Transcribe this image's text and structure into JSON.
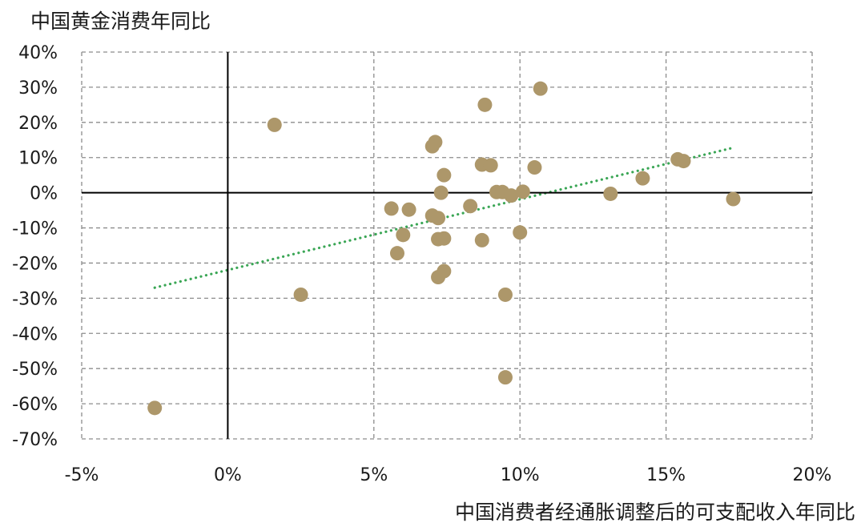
{
  "chart_data": {
    "type": "scatter",
    "title": "",
    "ylabel": "中国黄金消费年同比",
    "xlabel": "中国消费者经通胀调整后的可支配收入年同比",
    "xlim": [
      -5,
      20
    ],
    "ylim": [
      -70,
      40
    ],
    "x_ticks": [
      -5,
      0,
      5,
      10,
      15,
      20
    ],
    "y_ticks": [
      40,
      30,
      20,
      10,
      0,
      -10,
      -20,
      -30,
      -40,
      -50,
      -60,
      -70
    ],
    "x_tick_labels": [
      "-5%",
      "0%",
      "5%",
      "10%",
      "15%",
      "20%"
    ],
    "y_tick_labels": [
      "40%",
      "30%",
      "20%",
      "10%",
      "0%",
      "-10%",
      "-20%",
      "-30%",
      "-40%",
      "-50%",
      "-60%",
      "-70%"
    ],
    "grid": true,
    "grid_style": "dashed",
    "legend": "none",
    "colors": {
      "points": "#ad976a",
      "trendline": "#3aa655",
      "grid": "#8c8c8c",
      "axis": "#000000"
    },
    "series": [
      {
        "points": [
          {
            "x": -2.5,
            "y": -61.2
          },
          {
            "x": 1.6,
            "y": 19.3
          },
          {
            "x": 2.5,
            "y": -29.0
          },
          {
            "x": 5.6,
            "y": -4.5
          },
          {
            "x": 5.8,
            "y": -17.2
          },
          {
            "x": 6.0,
            "y": -12.0
          },
          {
            "x": 6.2,
            "y": -4.8
          },
          {
            "x": 7.0,
            "y": 13.2
          },
          {
            "x": 7.0,
            "y": -6.5
          },
          {
            "x": 7.1,
            "y": 14.4
          },
          {
            "x": 7.2,
            "y": -7.2
          },
          {
            "x": 7.2,
            "y": -13.2
          },
          {
            "x": 7.2,
            "y": -24.0
          },
          {
            "x": 7.3,
            "y": 0.0
          },
          {
            "x": 7.4,
            "y": 5.0
          },
          {
            "x": 7.4,
            "y": -13.0
          },
          {
            "x": 7.4,
            "y": -22.3
          },
          {
            "x": 8.3,
            "y": -3.8
          },
          {
            "x": 8.7,
            "y": 8.0
          },
          {
            "x": 8.7,
            "y": -13.5
          },
          {
            "x": 8.8,
            "y": 25.0
          },
          {
            "x": 9.0,
            "y": 7.8
          },
          {
            "x": 9.2,
            "y": 0.2
          },
          {
            "x": 9.4,
            "y": 0.2
          },
          {
            "x": 9.5,
            "y": -29.0
          },
          {
            "x": 9.5,
            "y": -52.5
          },
          {
            "x": 9.7,
            "y": -0.8
          },
          {
            "x": 10.0,
            "y": -11.3
          },
          {
            "x": 10.1,
            "y": 0.3
          },
          {
            "x": 10.5,
            "y": 7.2
          },
          {
            "x": 10.7,
            "y": 29.6
          },
          {
            "x": 13.1,
            "y": -0.3
          },
          {
            "x": 14.2,
            "y": 4.1
          },
          {
            "x": 15.4,
            "y": 9.5
          },
          {
            "x": 15.6,
            "y": 9.0
          },
          {
            "x": 17.3,
            "y": -1.8
          }
        ]
      }
    ],
    "trendline": {
      "type": "linear",
      "style": "dotted",
      "start": {
        "x": -2.5,
        "y": -27.0
      },
      "end": {
        "x": 17.3,
        "y": 12.8
      }
    }
  }
}
